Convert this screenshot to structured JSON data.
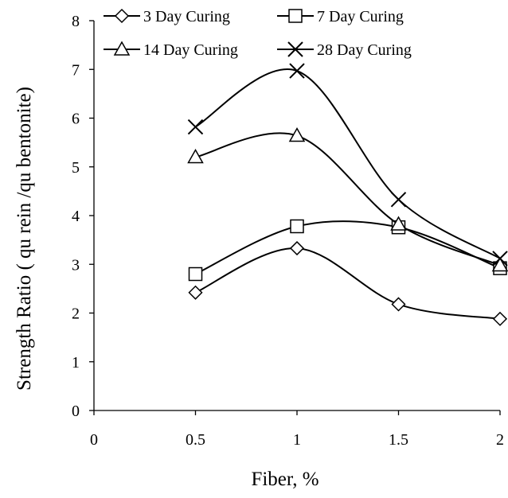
{
  "chart_data": {
    "type": "line",
    "title": "",
    "xlabel": "Fiber, %",
    "ylabel": "Strength Ratio ( qu  rein /qu bentonite)",
    "xlim": [
      0,
      2
    ],
    "ylim": [
      0,
      8
    ],
    "xticks": [
      "0",
      "0.5",
      "1",
      "1.5",
      "2"
    ],
    "yticks": [
      "0",
      "1",
      "2",
      "3",
      "4",
      "5",
      "6",
      "7",
      "8"
    ],
    "x": [
      0.5,
      1,
      1.5,
      2
    ],
    "grid": false,
    "legend_position": "top",
    "series": [
      {
        "name": "3 Day Curing",
        "marker": "diamond",
        "values": [
          2.42,
          3.33,
          2.18,
          1.88
        ]
      },
      {
        "name": "7 Day Curing",
        "marker": "square",
        "values": [
          2.8,
          3.78,
          3.76,
          2.92
        ]
      },
      {
        "name": "14 Day Curing",
        "marker": "triangle",
        "values": [
          5.2,
          5.64,
          3.82,
          2.98
        ]
      },
      {
        "name": "28 Day Curing",
        "marker": "x",
        "values": [
          5.82,
          6.97,
          4.33,
          3.12
        ]
      }
    ]
  }
}
